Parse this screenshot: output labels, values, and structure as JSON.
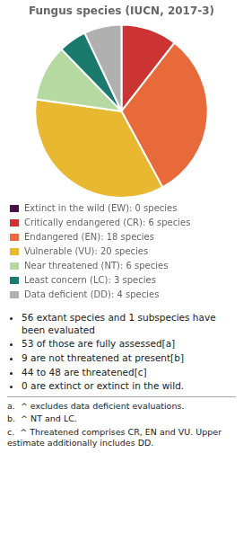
{
  "chart_data": {
    "type": "pie",
    "title": "Fungus species (IUCN, 2017-3)",
    "categories": [
      "Extinct in the wild (EW): 0 species",
      "Critically endangered (CR): 6 species",
      "Endangered (EN): 18 species",
      "Vulnerable (VU): 20 species",
      "Near threatened (NT): 6 species",
      "Least concern (LC): 3 species",
      "Data deficient (DD): 4 species"
    ],
    "values": [
      0,
      6,
      18,
      20,
      6,
      3,
      4
    ],
    "colors": [
      "#4b1248",
      "#cc3333",
      "#e8693a",
      "#e8b830",
      "#b5d9a0",
      "#1a7a6e",
      "#b0b0b0"
    ],
    "legend": "bottom",
    "annotations": [
      "56 extant species and 1 subspecies have been evaluated",
      "53 of those are fully assessed[a]",
      "9 are not threatened at present[b]",
      "44 to 48 are threatened[c]",
      "0 are extinct or extinct in the wild."
    ],
    "footnotes": [
      "a.  ^ excludes data deficient evaluations.",
      "b.  ^ NT and LC.",
      "c.  ^ Threatened comprises CR, EN and VU. Upper estimate additionally includes DD."
    ]
  }
}
